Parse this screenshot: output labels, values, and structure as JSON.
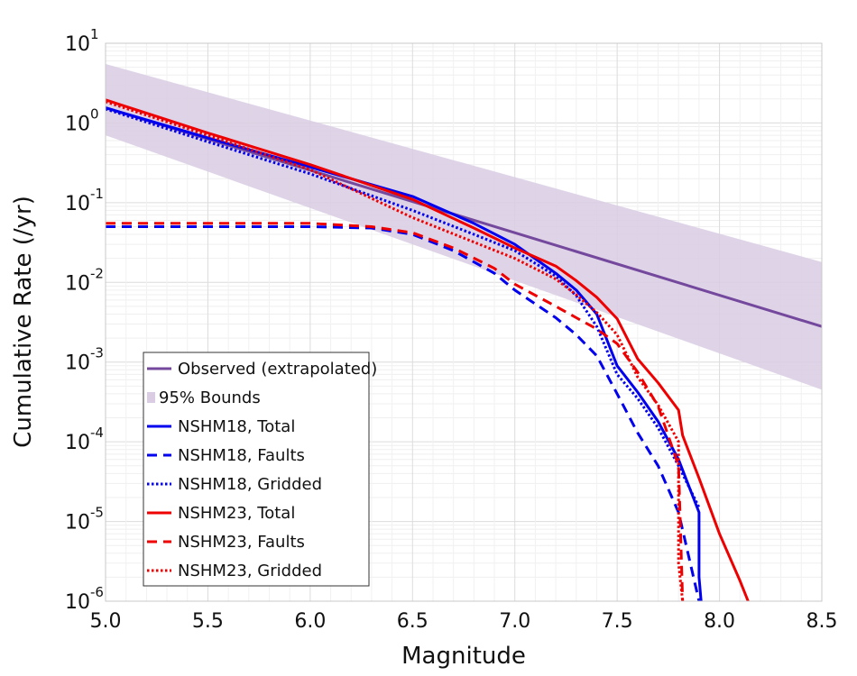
{
  "chart_data": {
    "type": "line",
    "xlabel": "Magnitude",
    "ylabel": "Cumulative Rate (/yr)",
    "y_scale": "log",
    "xlim": [
      5.0,
      8.5
    ],
    "ylim": [
      1e-06,
      10
    ],
    "grid": true,
    "legend_position": "bottom-left",
    "x_ticks": [
      "5.0",
      "5.5",
      "6.0",
      "6.5",
      "7.0",
      "7.5",
      "8.0",
      "8.5"
    ],
    "y_ticks": [
      {
        "base": "10",
        "exp": "1",
        "value": 10
      },
      {
        "base": "10",
        "exp": "0",
        "value": 1
      },
      {
        "base": "10",
        "exp": "-1",
        "value": 0.1
      },
      {
        "base": "10",
        "exp": "-2",
        "value": 0.01
      },
      {
        "base": "10",
        "exp": "-3",
        "value": 0.001
      },
      {
        "base": "10",
        "exp": "-4",
        "value": 0.0001
      },
      {
        "base": "10",
        "exp": "-5",
        "value": 1e-05
      },
      {
        "base": "10",
        "exp": "-6",
        "value": 1e-06
      }
    ],
    "bounds": {
      "name": "95% Bounds",
      "color": "#d9cce3",
      "x": [
        5.0,
        8.5
      ],
      "upper": [
        5.5,
        0.018
      ],
      "lower": [
        0.7,
        0.00045
      ]
    },
    "series": [
      {
        "name": "Observed (extrapolated)",
        "color": "#74489d",
        "style": "solid",
        "x": [
          5.0,
          8.5
        ],
        "y": [
          1.55,
          0.0028
        ]
      },
      {
        "name": "NSHM18, Total",
        "color": "#0000ee",
        "style": "solid",
        "x": [
          5.0,
          5.5,
          6.0,
          6.5,
          6.8,
          7.0,
          7.2,
          7.3,
          7.4,
          7.5,
          7.6,
          7.7,
          7.8,
          7.9,
          7.9,
          7.91
        ],
        "y": [
          1.55,
          0.65,
          0.28,
          0.12,
          0.055,
          0.03,
          0.013,
          0.008,
          0.004,
          0.0009,
          0.00042,
          0.00018,
          6e-05,
          1.3e-05,
          2e-06,
          1e-06
        ]
      },
      {
        "name": "NSHM18, Faults",
        "color": "#0000ee",
        "style": "dashed",
        "x": [
          5.0,
          5.5,
          6.0,
          6.3,
          6.5,
          6.7,
          6.9,
          7.0,
          7.2,
          7.3,
          7.4,
          7.5,
          7.6,
          7.7,
          7.8,
          7.9
        ],
        "y": [
          0.05,
          0.05,
          0.05,
          0.048,
          0.04,
          0.025,
          0.013,
          0.008,
          0.0036,
          0.0022,
          0.0012,
          0.0004,
          0.00013,
          5e-05,
          1.3e-05,
          1e-06
        ]
      },
      {
        "name": "NSHM18, Gridded",
        "color": "#0000ee",
        "style": "dotted",
        "x": [
          5.0,
          5.5,
          6.0,
          6.5,
          6.8,
          7.0,
          7.2,
          7.3,
          7.4,
          7.5,
          7.6,
          7.7,
          7.8,
          7.9
        ],
        "y": [
          1.5,
          0.58,
          0.23,
          0.08,
          0.04,
          0.025,
          0.012,
          0.0068,
          0.0028,
          0.0007,
          0.00035,
          0.00015,
          5e-05,
          1.5e-05
        ]
      },
      {
        "name": "NSHM23, Total",
        "color": "#ee0000",
        "style": "solid",
        "x": [
          5.0,
          5.5,
          6.0,
          6.5,
          6.8,
          7.0,
          7.2,
          7.3,
          7.4,
          7.5,
          7.6,
          7.7,
          7.8,
          7.82,
          7.9,
          8.0,
          8.1,
          8.14
        ],
        "y": [
          1.95,
          0.75,
          0.3,
          0.11,
          0.048,
          0.027,
          0.016,
          0.0105,
          0.0065,
          0.0035,
          0.0011,
          0.00055,
          0.00025,
          0.00012,
          3.5e-05,
          7e-06,
          1.8e-06,
          1e-06
        ]
      },
      {
        "name": "NSHM23, Faults",
        "color": "#ee0000",
        "style": "dashed",
        "x": [
          5.0,
          5.5,
          6.0,
          6.3,
          6.5,
          6.7,
          6.9,
          7.0,
          7.2,
          7.3,
          7.4,
          7.5,
          7.6,
          7.7,
          7.8,
          7.82
        ],
        "y": [
          0.055,
          0.055,
          0.055,
          0.05,
          0.042,
          0.027,
          0.015,
          0.0095,
          0.005,
          0.0036,
          0.0026,
          0.0017,
          0.00075,
          0.00028,
          5e-05,
          1e-06
        ]
      },
      {
        "name": "NSHM23, Gridded",
        "color": "#ee0000",
        "style": "dotted",
        "x": [
          5.0,
          5.5,
          6.0,
          6.5,
          6.8,
          7.0,
          7.2,
          7.3,
          7.4,
          7.5,
          7.6,
          7.7,
          7.8,
          7.8,
          7.82
        ],
        "y": [
          1.85,
          0.7,
          0.26,
          0.065,
          0.032,
          0.02,
          0.011,
          0.007,
          0.0042,
          0.0022,
          0.00065,
          0.00029,
          0.0001,
          3e-06,
          1e-06
        ]
      }
    ]
  }
}
